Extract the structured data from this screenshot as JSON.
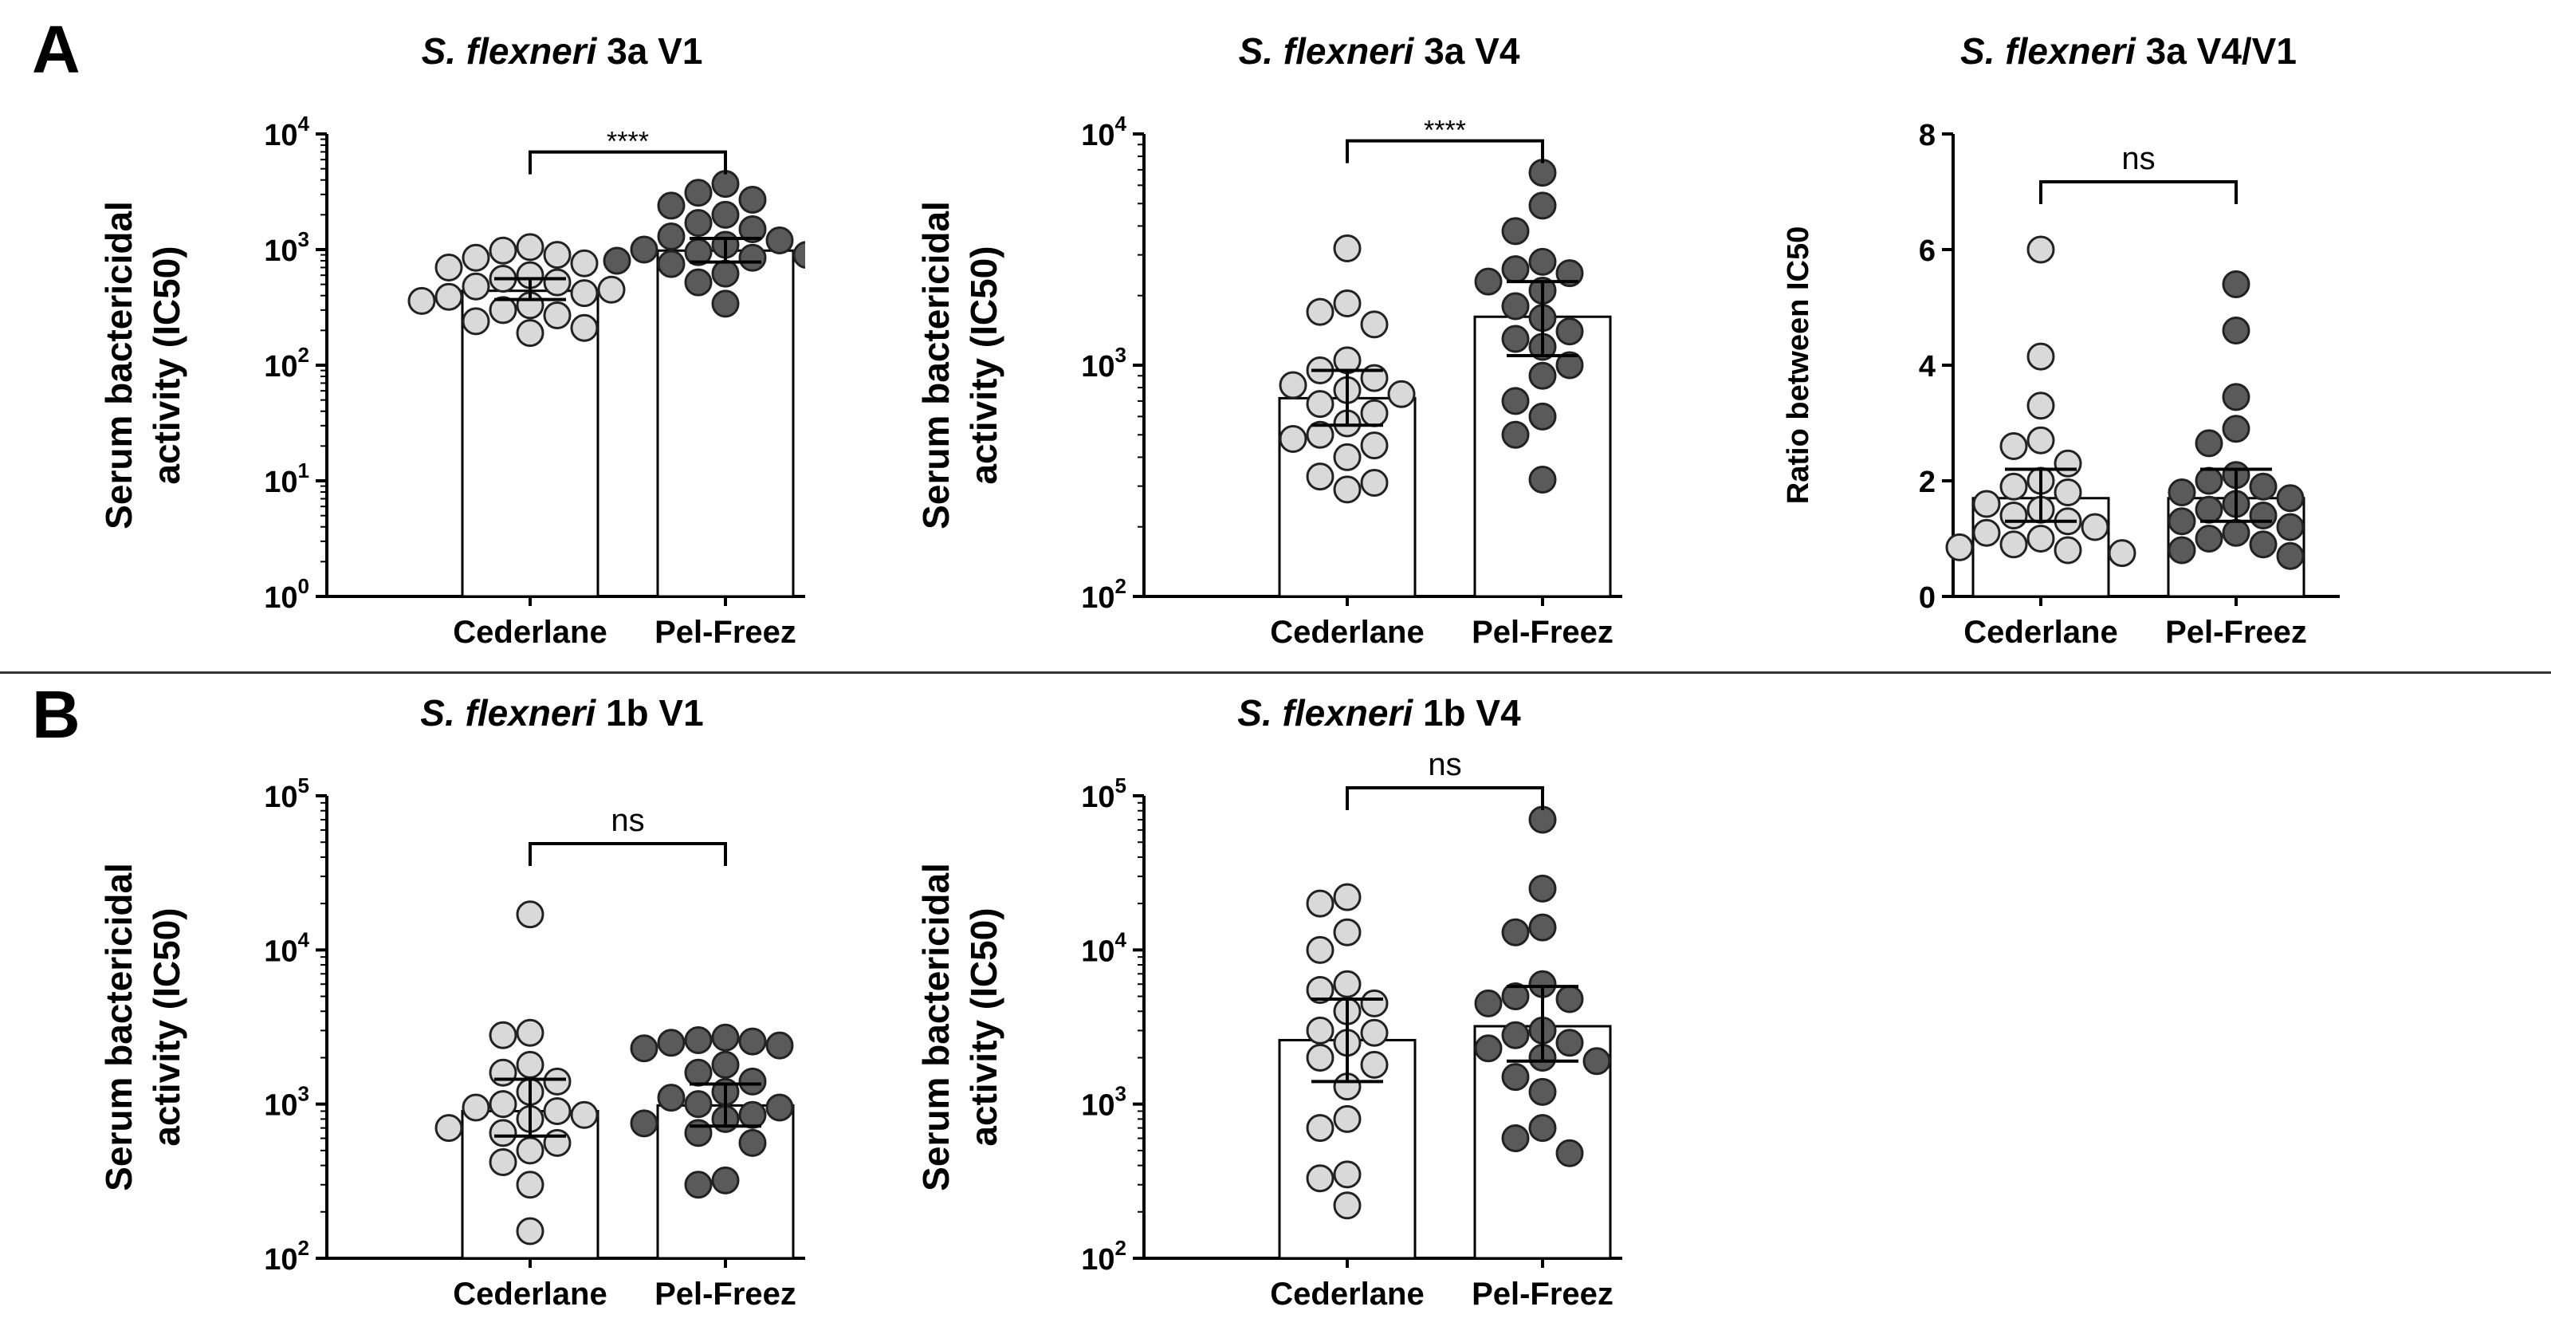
{
  "panels": [
    {
      "label": "A"
    },
    {
      "label": "B"
    }
  ],
  "colors": {
    "cederlane_dot": "#d9d9d9",
    "pelfreez_dot": "#5a5a5a",
    "bar_fill": "#ffffff",
    "axis": "#000000"
  },
  "chart_data": [
    {
      "panel": "A",
      "type": "bar",
      "title_italic": "S. flexneri",
      "title_rest": " 3a V1",
      "ylabel_line1": "Serum bactericidal",
      "ylabel_line2": "activity (IC50)",
      "scale": "log",
      "ylim": [
        1,
        10000
      ],
      "yticks": [
        {
          "base": "10",
          "exp": "0",
          "v": 1
        },
        {
          "base": "10",
          "exp": "1",
          "v": 10
        },
        {
          "base": "10",
          "exp": "2",
          "v": 100
        },
        {
          "base": "10",
          "exp": "3",
          "v": 1000
        },
        {
          "base": "10",
          "exp": "4",
          "v": 10000
        }
      ],
      "categories": [
        "Cederlane",
        "Pel-Freez"
      ],
      "bars": [
        {
          "name": "Cederlane",
          "mean": 440,
          "err_low": 370,
          "err_high": 560
        },
        {
          "name": "Pel-Freez",
          "mean": 980,
          "err_low": 780,
          "err_high": 1250
        }
      ],
      "points": [
        [
          1050,
          980,
          900,
          850,
          760,
          700,
          600,
          560,
          520,
          480,
          450,
          420,
          390,
          360,
          330,
          300,
          270,
          240,
          210,
          190
        ],
        [
          3700,
          3100,
          2700,
          2400,
          2000,
          1700,
          1500,
          1300,
          1200,
          1100,
          1000,
          950,
          900,
          850,
          800,
          750,
          700,
          620,
          520,
          340
        ]
      ],
      "significance": "****"
    },
    {
      "panel": "A",
      "type": "bar",
      "title_italic": "S. flexneri",
      "title_rest": " 3a V4",
      "ylabel_line1": "Serum bactericidal",
      "ylabel_line2": "activity (IC50)",
      "scale": "log",
      "ylim": [
        100,
        10000
      ],
      "yticks": [
        {
          "base": "10",
          "exp": "2",
          "v": 100
        },
        {
          "base": "10",
          "exp": "3",
          "v": 1000
        },
        {
          "base": "10",
          "exp": "4",
          "v": 10000
        }
      ],
      "categories": [
        "Cederlane",
        "Pel-Freez"
      ],
      "bars": [
        {
          "name": "Cederlane",
          "mean": 720,
          "err_low": 550,
          "err_high": 950
        },
        {
          "name": "Pel-Freez",
          "mean": 1620,
          "err_low": 1100,
          "err_high": 2300
        }
      ],
      "points": [
        [
          3200,
          1850,
          1700,
          1500,
          1050,
          950,
          880,
          820,
          780,
          750,
          680,
          620,
          560,
          500,
          480,
          450,
          400,
          330,
          310,
          290
        ],
        [
          6800,
          4900,
          3800,
          2800,
          2600,
          2500,
          2300,
          2100,
          1800,
          1600,
          1400,
          1300,
          1200,
          1000,
          900,
          700,
          600,
          500,
          320
        ]
      ],
      "significance": "****"
    },
    {
      "panel": "A",
      "type": "bar",
      "title_italic": "S. flexneri",
      "title_rest": " 3a V4/V1",
      "ylabel_line1": "Ratio between IC50",
      "ylabel_line2": "",
      "scale": "linear",
      "ylim": [
        0,
        8
      ],
      "yticks": [
        {
          "base": "0",
          "exp": "",
          "v": 0
        },
        {
          "base": "2",
          "exp": "",
          "v": 2
        },
        {
          "base": "4",
          "exp": "",
          "v": 4
        },
        {
          "base": "6",
          "exp": "",
          "v": 6
        },
        {
          "base": "8",
          "exp": "",
          "v": 8
        }
      ],
      "categories": [
        "Cederlane",
        "Pel-Freez"
      ],
      "bars": [
        {
          "name": "Cederlane",
          "mean": 1.7,
          "err_low": 1.3,
          "err_high": 2.2
        },
        {
          "name": "Pel-Freez",
          "mean": 1.7,
          "err_low": 1.3,
          "err_high": 2.2
        }
      ],
      "points": [
        [
          6.0,
          4.15,
          3.3,
          2.7,
          2.6,
          2.3,
          2.0,
          1.9,
          1.8,
          1.6,
          1.5,
          1.4,
          1.3,
          1.2,
          1.1,
          1.0,
          0.9,
          0.85,
          0.8,
          0.75
        ],
        [
          5.4,
          4.6,
          3.45,
          2.9,
          2.65,
          2.1,
          2.0,
          1.9,
          1.8,
          1.7,
          1.6,
          1.5,
          1.4,
          1.3,
          1.2,
          1.1,
          1.0,
          0.9,
          0.8,
          0.7
        ]
      ],
      "significance": "ns"
    },
    {
      "panel": "B",
      "type": "bar",
      "title_italic": "S. flexneri",
      "title_rest": " 1b V1",
      "ylabel_line1": "Serum bactericidal",
      "ylabel_line2": "activity (IC50)",
      "scale": "log",
      "ylim": [
        100,
        100000
      ],
      "yticks": [
        {
          "base": "10",
          "exp": "2",
          "v": 100
        },
        {
          "base": "10",
          "exp": "3",
          "v": 1000
        },
        {
          "base": "10",
          "exp": "4",
          "v": 10000
        },
        {
          "base": "10",
          "exp": "5",
          "v": 100000
        }
      ],
      "categories": [
        "Cederlane",
        "Pel-Freez"
      ],
      "bars": [
        {
          "name": "Cederlane",
          "mean": 900,
          "err_low": 620,
          "err_high": 1450
        },
        {
          "name": "Pel-Freez",
          "mean": 980,
          "err_low": 720,
          "err_high": 1350
        }
      ],
      "points": [
        [
          17000,
          2900,
          2800,
          1800,
          1600,
          1400,
          1200,
          1000,
          950,
          900,
          850,
          800,
          700,
          650,
          560,
          500,
          420,
          300,
          150
        ],
        [
          2700,
          2600,
          2550,
          2500,
          2400,
          2300,
          1800,
          1600,
          1400,
          1200,
          1100,
          1000,
          950,
          850,
          800,
          750,
          650,
          560,
          320,
          300
        ]
      ],
      "significance": "ns"
    },
    {
      "panel": "B",
      "type": "bar",
      "title_italic": "S. flexneri",
      "title_rest": " 1b V4",
      "ylabel_line1": "Serum bactericidal",
      "ylabel_line2": "activity (IC50)",
      "scale": "log",
      "ylim": [
        100,
        100000
      ],
      "yticks": [
        {
          "base": "10",
          "exp": "2",
          "v": 100
        },
        {
          "base": "10",
          "exp": "3",
          "v": 1000
        },
        {
          "base": "10",
          "exp": "4",
          "v": 10000
        },
        {
          "base": "10",
          "exp": "5",
          "v": 100000
        }
      ],
      "categories": [
        "Cederlane",
        "Pel-Freez"
      ],
      "bars": [
        {
          "name": "Cederlane",
          "mean": 2600,
          "err_low": 1400,
          "err_high": 4800
        },
        {
          "name": "Pel-Freez",
          "mean": 3200,
          "err_low": 1900,
          "err_high": 5800
        }
      ],
      "points": [
        [
          22000,
          20000,
          13000,
          10000,
          6000,
          5500,
          4500,
          4000,
          3000,
          2900,
          2500,
          2000,
          1800,
          1300,
          800,
          700,
          350,
          330,
          220
        ],
        [
          70000,
          25000,
          14000,
          13000,
          6000,
          5000,
          4800,
          4500,
          3000,
          2800,
          2500,
          2300,
          2000,
          1900,
          1500,
          1200,
          700,
          600,
          480
        ]
      ],
      "significance": "ns"
    }
  ]
}
